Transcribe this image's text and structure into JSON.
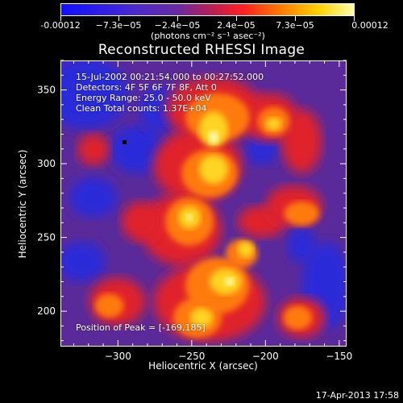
{
  "colorbar": {
    "tick_labels": [
      "-0.00012",
      "−7.3e−05",
      "−2.4e−05",
      "2.4e−05",
      "7.3e−05",
      "0.00012"
    ],
    "units": "(photons cm⁻² s⁻¹ asec⁻²)"
  },
  "title": "Reconstructed RHESSI Image",
  "info": {
    "time_range": "15-Jul-2002 00:21:54.000 to 00:27:52.000",
    "detectors": "Detectors: 4F 5F 6F 7F 8F, Att 0",
    "energy_range": "Energy Range: 25.0 - 50.0 keV",
    "clean_counts": "Clean    Total counts: 1.37E+04",
    "peak_position": "Position of Peak = [-169,185]"
  },
  "chart_data": {
    "type": "heatmap",
    "title": "Reconstructed RHESSI Image",
    "xlabel": "Heliocentric X (arcsec)",
    "ylabel": "Heliocentric Y (arcsec)",
    "xlim": [
      -339,
      -145
    ],
    "ylim": [
      176,
      370
    ],
    "x_ticks": [
      -300,
      -250,
      -200,
      -150
    ],
    "y_ticks": [
      200,
      250,
      300,
      350
    ],
    "x_tick_labels": [
      "−300",
      "−250",
      "−200",
      "−150"
    ],
    "y_tick_labels": [
      "200",
      "250",
      "300",
      "350"
    ],
    "colorbar_range": [
      -0.00012,
      0.00012
    ],
    "colormap": "blue-purple-red-orange-yellow-white"
  },
  "footer": {
    "date": "17-Apr-2013 17:58"
  },
  "colors": {
    "background": "#000000",
    "foreground": "#ffffff"
  }
}
